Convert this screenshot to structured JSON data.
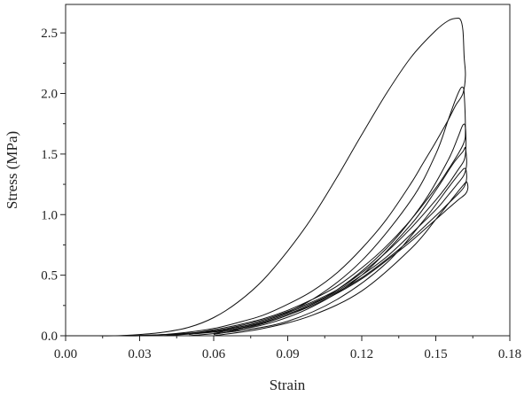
{
  "chart_data": {
    "type": "line",
    "title": "",
    "xlabel": "Strain",
    "ylabel": "Stress (MPa)",
    "xlim": [
      0,
      0.18
    ],
    "ylim": [
      0,
      2.6
    ],
    "x_ticks": [
      "0.00",
      "0.03",
      "0.06",
      "0.09",
      "0.12",
      "0.15",
      "0.18"
    ],
    "y_ticks": [
      "0.0",
      "0.5",
      "1.0",
      "1.5",
      "2.0",
      "2.5"
    ],
    "x_tick_values": [
      0,
      0.03,
      0.06,
      0.09,
      0.12,
      0.15,
      0.18
    ],
    "y_tick_values": [
      0,
      0.5,
      1.0,
      1.5,
      2.0,
      2.5
    ],
    "grid": false,
    "legend": false,
    "line_color": "#111111",
    "series": [
      {
        "points": [
          [
            0.0,
            0.0
          ],
          [
            0.01,
            0.0
          ],
          [
            0.02,
            0.0
          ],
          [
            0.03,
            0.01
          ],
          [
            0.04,
            0.03
          ],
          [
            0.05,
            0.07
          ],
          [
            0.06,
            0.15
          ],
          [
            0.07,
            0.28
          ],
          [
            0.08,
            0.46
          ],
          [
            0.09,
            0.7
          ],
          [
            0.1,
            0.98
          ],
          [
            0.11,
            1.31
          ],
          [
            0.12,
            1.66
          ],
          [
            0.13,
            2.0
          ],
          [
            0.14,
            2.3
          ],
          [
            0.15,
            2.52
          ],
          [
            0.155,
            2.6
          ],
          [
            0.158,
            2.62
          ],
          [
            0.16,
            2.61
          ],
          [
            0.161,
            2.52
          ],
          [
            0.1615,
            2.3
          ],
          [
            0.162,
            2.15
          ],
          [
            0.161,
            2.0
          ],
          [
            0.158,
            1.9
          ],
          [
            0.155,
            1.78
          ],
          [
            0.15,
            1.6
          ],
          [
            0.145,
            1.43
          ],
          [
            0.14,
            1.26
          ],
          [
            0.13,
            0.96
          ],
          [
            0.12,
            0.72
          ],
          [
            0.11,
            0.52
          ],
          [
            0.1,
            0.37
          ],
          [
            0.09,
            0.26
          ],
          [
            0.08,
            0.17
          ],
          [
            0.07,
            0.11
          ],
          [
            0.06,
            0.06
          ],
          [
            0.05,
            0.03
          ],
          [
            0.04,
            0.01
          ],
          [
            0.03,
            0.0
          ],
          [
            0.02,
            0.0
          ]
        ]
      },
      {
        "points": [
          [
            0.02,
            0.0
          ],
          [
            0.04,
            0.01
          ],
          [
            0.06,
            0.04
          ],
          [
            0.08,
            0.12
          ],
          [
            0.1,
            0.3
          ],
          [
            0.12,
            0.62
          ],
          [
            0.14,
            1.12
          ],
          [
            0.15,
            1.5
          ],
          [
            0.155,
            1.78
          ],
          [
            0.158,
            1.95
          ],
          [
            0.16,
            2.04
          ],
          [
            0.161,
            2.05
          ],
          [
            0.1615,
            2.0
          ],
          [
            0.162,
            1.7
          ],
          [
            0.1615,
            1.6
          ],
          [
            0.159,
            1.5
          ],
          [
            0.155,
            1.37
          ],
          [
            0.15,
            1.22
          ],
          [
            0.14,
            0.96
          ],
          [
            0.13,
            0.74
          ],
          [
            0.12,
            0.56
          ],
          [
            0.11,
            0.41
          ],
          [
            0.1,
            0.3
          ],
          [
            0.09,
            0.21
          ],
          [
            0.08,
            0.14
          ],
          [
            0.07,
            0.09
          ],
          [
            0.06,
            0.05
          ],
          [
            0.05,
            0.02
          ],
          [
            0.04,
            0.01
          ],
          [
            0.03,
            0.0
          ]
        ]
      },
      {
        "points": [
          [
            0.03,
            0.0
          ],
          [
            0.05,
            0.02
          ],
          [
            0.07,
            0.06
          ],
          [
            0.09,
            0.17
          ],
          [
            0.11,
            0.38
          ],
          [
            0.13,
            0.72
          ],
          [
            0.145,
            1.1
          ],
          [
            0.155,
            1.45
          ],
          [
            0.159,
            1.64
          ],
          [
            0.161,
            1.74
          ],
          [
            0.162,
            1.72
          ],
          [
            0.1622,
            1.55
          ],
          [
            0.1615,
            1.45
          ],
          [
            0.159,
            1.37
          ],
          [
            0.155,
            1.25
          ],
          [
            0.15,
            1.12
          ],
          [
            0.14,
            0.89
          ],
          [
            0.13,
            0.69
          ],
          [
            0.12,
            0.52
          ],
          [
            0.11,
            0.38
          ],
          [
            0.1,
            0.28
          ],
          [
            0.09,
            0.2
          ],
          [
            0.08,
            0.13
          ],
          [
            0.07,
            0.08
          ],
          [
            0.06,
            0.04
          ],
          [
            0.05,
            0.02
          ],
          [
            0.04,
            0.0
          ]
        ]
      },
      {
        "points": [
          [
            0.04,
            0.0
          ],
          [
            0.06,
            0.03
          ],
          [
            0.08,
            0.09
          ],
          [
            0.1,
            0.24
          ],
          [
            0.12,
            0.5
          ],
          [
            0.14,
            0.92
          ],
          [
            0.15,
            1.2
          ],
          [
            0.157,
            1.42
          ],
          [
            0.161,
            1.52
          ],
          [
            0.162,
            1.55
          ],
          [
            0.1625,
            1.42
          ],
          [
            0.1615,
            1.33
          ],
          [
            0.159,
            1.26
          ],
          [
            0.155,
            1.16
          ],
          [
            0.15,
            1.04
          ],
          [
            0.14,
            0.84
          ],
          [
            0.13,
            0.65
          ],
          [
            0.12,
            0.5
          ],
          [
            0.11,
            0.37
          ],
          [
            0.1,
            0.27
          ],
          [
            0.09,
            0.19
          ],
          [
            0.08,
            0.12
          ],
          [
            0.07,
            0.07
          ],
          [
            0.06,
            0.04
          ],
          [
            0.05,
            0.01
          ]
        ]
      },
      {
        "points": [
          [
            0.05,
            0.0
          ],
          [
            0.07,
            0.04
          ],
          [
            0.09,
            0.12
          ],
          [
            0.11,
            0.3
          ],
          [
            0.13,
            0.6
          ],
          [
            0.145,
            0.95
          ],
          [
            0.155,
            1.22
          ],
          [
            0.16,
            1.35
          ],
          [
            0.162,
            1.38
          ],
          [
            0.1625,
            1.3
          ],
          [
            0.1615,
            1.23
          ],
          [
            0.159,
            1.17
          ],
          [
            0.155,
            1.09
          ],
          [
            0.15,
            0.99
          ],
          [
            0.14,
            0.8
          ],
          [
            0.13,
            0.63
          ],
          [
            0.12,
            0.48
          ],
          [
            0.11,
            0.36
          ],
          [
            0.1,
            0.26
          ],
          [
            0.09,
            0.18
          ],
          [
            0.08,
            0.11
          ],
          [
            0.07,
            0.06
          ],
          [
            0.06,
            0.02
          ]
        ]
      },
      {
        "points": [
          [
            0.06,
            0.0
          ],
          [
            0.08,
            0.06
          ],
          [
            0.1,
            0.17
          ],
          [
            0.12,
            0.37
          ],
          [
            0.14,
            0.72
          ],
          [
            0.15,
            0.96
          ],
          [
            0.157,
            1.14
          ],
          [
            0.161,
            1.24
          ],
          [
            0.1625,
            1.27
          ],
          [
            0.163,
            1.22
          ],
          [
            0.162,
            1.17
          ],
          [
            0.159,
            1.12
          ],
          [
            0.155,
            1.05
          ],
          [
            0.15,
            0.96
          ],
          [
            0.14,
            0.78
          ],
          [
            0.13,
            0.62
          ],
          [
            0.12,
            0.47
          ],
          [
            0.11,
            0.35
          ],
          [
            0.1,
            0.25
          ],
          [
            0.09,
            0.17
          ],
          [
            0.08,
            0.1
          ],
          [
            0.07,
            0.05
          ],
          [
            0.06,
            0.01
          ]
        ]
      }
    ]
  }
}
